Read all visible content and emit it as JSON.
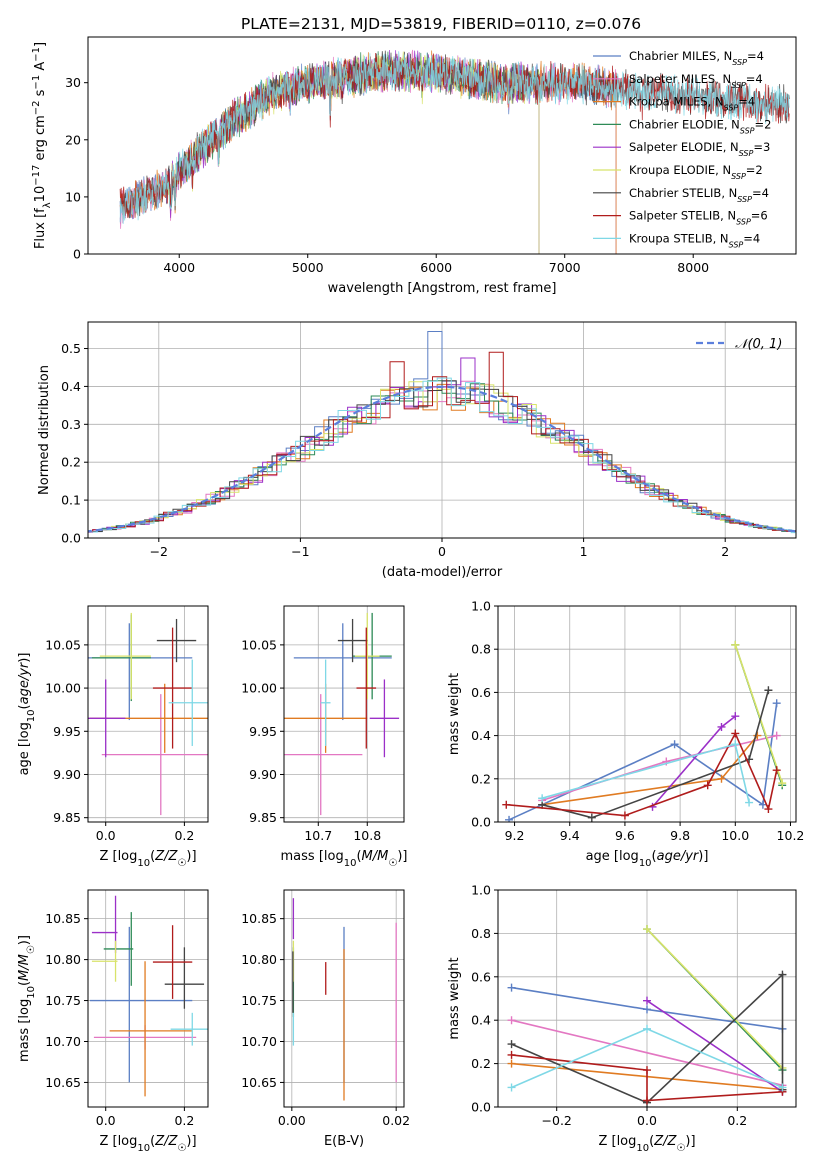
{
  "title": "PLATE=2131, MJD=53819, FIBERID=0110, z=0.076",
  "chart_data": [
    {
      "id": "spectrum",
      "type": "line",
      "xlabel": "wavelength [Angstrom, rest frame]",
      "ylabel": "Flux [f_λ10^-17 erg cm^-2 s^-1 A^-1]",
      "xlim": [
        3290,
        8800
      ],
      "ylim": [
        0,
        38
      ],
      "xticks": [
        4000,
        5000,
        6000,
        7000,
        8000
      ],
      "yticks": [
        0,
        10,
        20,
        30
      ],
      "legend": "upper-right",
      "series": [
        {
          "name": "Chabrier MILES, N_SSP=4",
          "color": "#5b7fc4",
          "start": 3540,
          "end": 7400
        },
        {
          "name": "Salpeter MILES, N_SSP=4",
          "color": "#e377c2",
          "start": 3540,
          "end": 7400
        },
        {
          "name": "Kroupa MILES, N_SSP=4",
          "color": "#e07b22",
          "start": 3540,
          "end": 7400
        },
        {
          "name": "Chabrier ELODIE, N_SSP=2",
          "color": "#2e8b57",
          "start": 3900,
          "end": 6800
        },
        {
          "name": "Salpeter ELODIE, N_SSP=3",
          "color": "#9b30c8",
          "start": 3900,
          "end": 6800
        },
        {
          "name": "Kroupa ELODIE, N_SSP=2",
          "color": "#d8e36a",
          "start": 3900,
          "end": 6800
        },
        {
          "name": "Chabrier STELIB, N_SSP=4",
          "color": "#444444",
          "start": 3540,
          "end": 8750
        },
        {
          "name": "Salpeter STELIB, N_SSP=6",
          "color": "#b01c1c",
          "start": 3540,
          "end": 8750
        },
        {
          "name": "Kroupa STELIB, N_SSP=4",
          "color": "#7fd8e6",
          "start": 3540,
          "end": 8750
        }
      ],
      "continuum": [
        [
          3540,
          8
        ],
        [
          3700,
          10
        ],
        [
          3900,
          12
        ],
        [
          4100,
          17
        ],
        [
          4400,
          23
        ],
        [
          4700,
          28
        ],
        [
          5000,
          30
        ],
        [
          5300,
          31
        ],
        [
          5600,
          32
        ],
        [
          5900,
          32
        ],
        [
          6200,
          31
        ],
        [
          6500,
          30
        ],
        [
          6800,
          30
        ],
        [
          7100,
          30
        ],
        [
          7400,
          29
        ],
        [
          7800,
          28
        ],
        [
          8200,
          27
        ],
        [
          8750,
          26
        ]
      ],
      "features": [
        [
          3933,
          5
        ],
        [
          3968,
          4
        ],
        [
          4102,
          3
        ],
        [
          4304,
          4
        ],
        [
          4861,
          2
        ],
        [
          5175,
          5
        ],
        [
          5270,
          2
        ],
        [
          5893,
          3
        ],
        [
          6563,
          2
        ],
        [
          7600,
          2
        ]
      ]
    },
    {
      "id": "residuals",
      "type": "histogram",
      "xlabel": "(data-model)/error",
      "ylabel": "Normed distribution",
      "xlim": [
        -2.5,
        2.5
      ],
      "ylim": [
        0,
        0.57
      ],
      "xticks": [
        -2,
        -1,
        0,
        1,
        2
      ],
      "yticks": [
        0.0,
        0.1,
        0.2,
        0.3,
        0.4,
        0.5
      ],
      "legend": "upper-right",
      "reference_curve": {
        "name": "𝒩(0, 1)",
        "color": "#5b7fdc",
        "mean": 0,
        "sigma": 1
      },
      "bin_width": 0.1,
      "highlights": [
        [
          0.0,
          0.545
        ],
        [
          0.35,
          0.49
        ],
        [
          -0.35,
          0.465
        ],
        [
          0.2,
          0.475
        ],
        [
          -0.05,
          0.36
        ]
      ]
    },
    {
      "id": "age-vs-Z",
      "type": "errorbar",
      "xlabel": "Z [log₁₀(Z/Z☉)]",
      "ylabel": "age  [log₁₀(age/yr)]",
      "xlim": [
        -0.045,
        0.26
      ],
      "ylim": [
        9.845,
        10.095
      ],
      "xticks": [
        0.0,
        0.2
      ],
      "yticks": [
        9.85,
        9.9,
        9.95,
        10.0,
        10.05
      ],
      "points": [
        {
          "color": "#5b7fc4",
          "x": 0.06,
          "xerr": [
            0.16,
            0.16
          ],
          "y": 10.035,
          "yerr": [
            0.072,
            0.04
          ]
        },
        {
          "color": "#e377c2",
          "x": 0.14,
          "xerr": [
            0.15,
            0.15
          ],
          "y": 9.923,
          "yerr": [
            0.07,
            0.07
          ]
        },
        {
          "color": "#e07b22",
          "x": 0.15,
          "xerr": [
            0.19,
            0.19
          ],
          "y": 9.965,
          "yerr": [
            0.04,
            0.04
          ]
        },
        {
          "color": "#2e8b57",
          "x": 0.065,
          "xerr": [
            0.1,
            0.05
          ],
          "y": 10.035,
          "yerr": [
            0.05,
            0.05
          ]
        },
        {
          "color": "#9b30c8",
          "x": 0.0,
          "xerr": [
            0.05,
            0.05
          ],
          "y": 9.965,
          "yerr": [
            0.045,
            0.045
          ]
        },
        {
          "color": "#d8e36a",
          "x": 0.065,
          "xerr": [
            0.08,
            0.05
          ],
          "y": 10.037,
          "yerr": [
            0.05,
            0.05
          ]
        },
        {
          "color": "#444444",
          "x": 0.18,
          "xerr": [
            0.05,
            0.05
          ],
          "y": 10.055,
          "yerr": [
            0.025,
            0.025
          ]
        },
        {
          "color": "#b01c1c",
          "x": 0.17,
          "xerr": [
            0.05,
            0.05
          ],
          "y": 10.0,
          "yerr": [
            0.07,
            0.07
          ]
        },
        {
          "color": "#7fd8e6",
          "x": 0.22,
          "xerr": [
            0.06,
            0.06
          ],
          "y": 9.983,
          "yerr": [
            0.05,
            0.05
          ]
        }
      ]
    },
    {
      "id": "age-vs-mass",
      "type": "errorbar",
      "xlabel": "mass [log₁₀(M/M☉)]",
      "ylabel": "",
      "xlim": [
        10.63,
        10.875
      ],
      "ylim": [
        9.845,
        10.095
      ],
      "xticks": [
        10.7,
        10.8
      ],
      "yticks": [
        9.85,
        9.9,
        9.95,
        10.0,
        10.05
      ],
      "points": [
        {
          "color": "#5b7fc4",
          "x": 10.75,
          "xerr": [
            0.1,
            0.1
          ],
          "y": 10.035,
          "yerr": [
            0.072,
            0.04
          ]
        },
        {
          "color": "#e377c2",
          "x": 10.705,
          "xerr": [
            0.085,
            0.085
          ],
          "y": 9.923,
          "yerr": [
            0.07,
            0.07
          ]
        },
        {
          "color": "#e07b22",
          "x": 10.715,
          "xerr": [
            0.085,
            0.085
          ],
          "y": 9.965,
          "yerr": [
            0.04,
            0.04
          ]
        },
        {
          "color": "#2e8b57",
          "x": 10.81,
          "xerr": [
            0.04,
            0.04
          ],
          "y": 10.037,
          "yerr": [
            0.05,
            0.05
          ]
        },
        {
          "color": "#9b30c8",
          "x": 10.835,
          "xerr": [
            0.03,
            0.03
          ],
          "y": 9.965,
          "yerr": [
            0.045,
            0.045
          ]
        },
        {
          "color": "#d8e36a",
          "x": 10.8,
          "xerr": [
            0.025,
            0.025
          ],
          "y": 10.037,
          "yerr": [
            0.05,
            0.05
          ]
        },
        {
          "color": "#444444",
          "x": 10.77,
          "xerr": [
            0.03,
            0.03
          ],
          "y": 10.055,
          "yerr": [
            0.025,
            0.025
          ]
        },
        {
          "color": "#b01c1c",
          "x": 10.798,
          "xerr": [
            0.02,
            0.02
          ],
          "y": 10.0,
          "yerr": [
            0.07,
            0.07
          ]
        },
        {
          "color": "#7fd8e6",
          "x": 10.715,
          "xerr": [
            0.01,
            0.01
          ],
          "y": 9.983,
          "yerr": [
            0.05,
            0.05
          ]
        }
      ]
    },
    {
      "id": "mass-weight-vs-age",
      "type": "line",
      "xlabel": "age  [log₁₀(age/yr)]",
      "ylabel": "mass weight",
      "xlim": [
        9.14,
        10.22
      ],
      "ylim": [
        0,
        1.0
      ],
      "xticks": [
        9.2,
        9.4,
        9.6,
        9.8,
        10.0,
        10.2
      ],
      "yticks": [
        0.0,
        0.2,
        0.4,
        0.6,
        0.8,
        1.0
      ],
      "grid": true,
      "series": [
        {
          "color": "#5b7fc4",
          "x": [
            9.18,
            9.78,
            10.1,
            10.15
          ],
          "y": [
            0.01,
            0.36,
            0.08,
            0.55
          ]
        },
        {
          "color": "#e377c2",
          "x": [
            9.3,
            9.75,
            10.15
          ],
          "y": [
            0.1,
            0.28,
            0.4
          ]
        },
        {
          "color": "#e07b22",
          "x": [
            9.3,
            9.95,
            10.08
          ],
          "y": [
            0.08,
            0.2,
            0.4
          ]
        },
        {
          "color": "#2e8b57",
          "x": [
            10.0,
            10.17
          ],
          "y": [
            0.82,
            0.17
          ]
        },
        {
          "color": "#9b30c8",
          "x": [
            9.7,
            9.95,
            10.0
          ],
          "y": [
            0.07,
            0.44,
            0.49
          ]
        },
        {
          "color": "#d8e36a",
          "x": [
            10.0,
            10.17
          ],
          "y": [
            0.82,
            0.18
          ]
        },
        {
          "color": "#444444",
          "x": [
            9.3,
            9.48,
            10.05,
            10.12
          ],
          "y": [
            0.08,
            0.02,
            0.29,
            0.61
          ]
        },
        {
          "color": "#b01c1c",
          "x": [
            9.17,
            9.6,
            9.9,
            10.0,
            10.12,
            10.15
          ],
          "y": [
            0.08,
            0.03,
            0.17,
            0.41,
            0.06,
            0.24
          ]
        },
        {
          "color": "#7fd8e6",
          "x": [
            9.3,
            10.0,
            10.05
          ],
          "y": [
            0.11,
            0.36,
            0.09
          ]
        }
      ]
    },
    {
      "id": "mass-vs-Z",
      "type": "errorbar",
      "xlabel": "Z [log₁₀(Z/Z☉)]",
      "ylabel": "mass [log₁₀(M/M☉)]",
      "xlim": [
        -0.045,
        0.26
      ],
      "ylim": [
        10.62,
        10.885
      ],
      "xticks": [
        0.0,
        0.2
      ],
      "yticks": [
        10.65,
        10.7,
        10.75,
        10.8,
        10.85
      ],
      "points": [
        {
          "color": "#5b7fc4",
          "x": 0.06,
          "xerr": [
            0.1,
            0.16
          ],
          "y": 10.75,
          "yerr": [
            0.1,
            0.09
          ]
        },
        {
          "color": "#e377c2",
          "x": 0.1,
          "xerr": [
            0.13,
            0.13
          ],
          "y": 10.705,
          "yerr": [
            0.015,
            0.015
          ]
        },
        {
          "color": "#e07b22",
          "x": 0.1,
          "xerr": [
            0.09,
            0.12
          ],
          "y": 10.713,
          "yerr": [
            0.08,
            0.085
          ]
        },
        {
          "color": "#2e8b57",
          "x": 0.065,
          "xerr": [
            0.07,
            0.005
          ],
          "y": 10.813,
          "yerr": [
            0.045,
            0.045
          ]
        },
        {
          "color": "#9b30c8",
          "x": 0.025,
          "xerr": [
            0.06,
            0.005
          ],
          "y": 10.833,
          "yerr": [
            0.025,
            0.045
          ]
        },
        {
          "color": "#d8e36a",
          "x": 0.025,
          "xerr": [
            0.06,
            0.005
          ],
          "y": 10.798,
          "yerr": [
            0.025,
            0.025
          ]
        },
        {
          "color": "#444444",
          "x": 0.2,
          "xerr": [
            0.05,
            0.05
          ],
          "y": 10.77,
          "yerr": [
            0.03,
            0.045
          ]
        },
        {
          "color": "#b01c1c",
          "x": 0.17,
          "xerr": [
            0.05,
            0.05
          ],
          "y": 10.797,
          "yerr": [
            0.045,
            0.045
          ]
        },
        {
          "color": "#7fd8e6",
          "x": 0.22,
          "xerr": [
            0.055,
            0.055
          ],
          "y": 10.715,
          "yerr": [
            0.02,
            0.02
          ]
        }
      ]
    },
    {
      "id": "mass-vs-EBV",
      "type": "errorbar",
      "xlabel": "E(B-V)",
      "ylabel": "",
      "xlim": [
        -0.0015,
        0.0215
      ],
      "ylim": [
        10.62,
        10.885
      ],
      "xticks": [
        0.0,
        0.02
      ],
      "yticks": [
        10.65,
        10.7,
        10.75,
        10.8,
        10.85
      ],
      "points": [
        {
          "color": "#5b7fc4",
          "x": 0.01,
          "xerr": [
            0,
            0
          ],
          "y": 10.75,
          "yerr": [
            0.1,
            0.09
          ]
        },
        {
          "color": "#e377c2",
          "x": 0.02,
          "xerr": [
            0,
            0
          ],
          "y": 10.75,
          "yerr": [
            0.1,
            0.095
          ]
        },
        {
          "color": "#e07b22",
          "x": 0.01,
          "xerr": [
            0,
            0
          ],
          "y": 10.713,
          "yerr": [
            0.085,
            0.1
          ]
        },
        {
          "color": "#2e8b57",
          "x": 0.0003,
          "xerr": [
            0,
            0
          ],
          "y": 10.765,
          "yerr": [
            0.035,
            0.05
          ]
        },
        {
          "color": "#9b30c8",
          "x": 0.0003,
          "xerr": [
            0,
            0
          ],
          "y": 10.845,
          "yerr": [
            0.02,
            0.03
          ]
        },
        {
          "color": "#d8e36a",
          "x": 0.0003,
          "xerr": [
            0,
            0
          ],
          "y": 10.798,
          "yerr": [
            0.025,
            0.025
          ]
        },
        {
          "color": "#444444",
          "x": 0.0002,
          "xerr": [
            0,
            0
          ],
          "y": 10.77,
          "yerr": [
            0.035,
            0.04
          ]
        },
        {
          "color": "#b01c1c",
          "x": 0.0065,
          "xerr": [
            0,
            0
          ],
          "y": 10.777,
          "yerr": [
            0.02,
            0.02
          ]
        },
        {
          "color": "#7fd8e6",
          "x": 0.0003,
          "xerr": [
            0,
            0
          ],
          "y": 10.715,
          "yerr": [
            0.02,
            0.02
          ]
        }
      ]
    },
    {
      "id": "mass-weight-vs-Z",
      "type": "line",
      "xlabel": "Z [log₁₀(Z/Z☉)]",
      "ylabel": "mass weight",
      "xlim": [
        -0.33,
        0.33
      ],
      "ylim": [
        0,
        1.0
      ],
      "xticks": [
        -0.2,
        0.0,
        0.2
      ],
      "yticks": [
        0.0,
        0.2,
        0.4,
        0.6,
        0.8,
        1.0
      ],
      "grid": true,
      "series": [
        {
          "color": "#5b7fc4",
          "x": [
            -0.3,
            0.0,
            0.3
          ],
          "y": [
            0.55,
            0.45,
            0.36
          ]
        },
        {
          "color": "#e377c2",
          "x": [
            -0.3,
            0.3
          ],
          "y": [
            0.4,
            0.1
          ]
        },
        {
          "color": "#e07b22",
          "x": [
            -0.3,
            0.3
          ],
          "y": [
            0.2,
            0.08
          ]
        },
        {
          "color": "#2e8b57",
          "x": [
            0.0,
            0.3
          ],
          "y": [
            0.82,
            0.17
          ]
        },
        {
          "color": "#9b30c8",
          "x": [
            0.0,
            0.3
          ],
          "y": [
            0.49,
            0.07
          ]
        },
        {
          "color": "#d8e36a",
          "x": [
            0.0,
            0.3
          ],
          "y": [
            0.82,
            0.18
          ]
        },
        {
          "color": "#444444",
          "x": [
            -0.3,
            0.0,
            0.3,
            0.3
          ],
          "y": [
            0.29,
            0.02,
            0.61,
            0.08
          ]
        },
        {
          "color": "#b01c1c",
          "x": [
            -0.3,
            0.0,
            0.0,
            0.3
          ],
          "y": [
            0.24,
            0.17,
            0.03,
            0.07
          ]
        },
        {
          "color": "#7fd8e6",
          "x": [
            -0.3,
            0.0,
            0.3
          ],
          "y": [
            0.09,
            0.36,
            0.09
          ]
        }
      ]
    }
  ]
}
